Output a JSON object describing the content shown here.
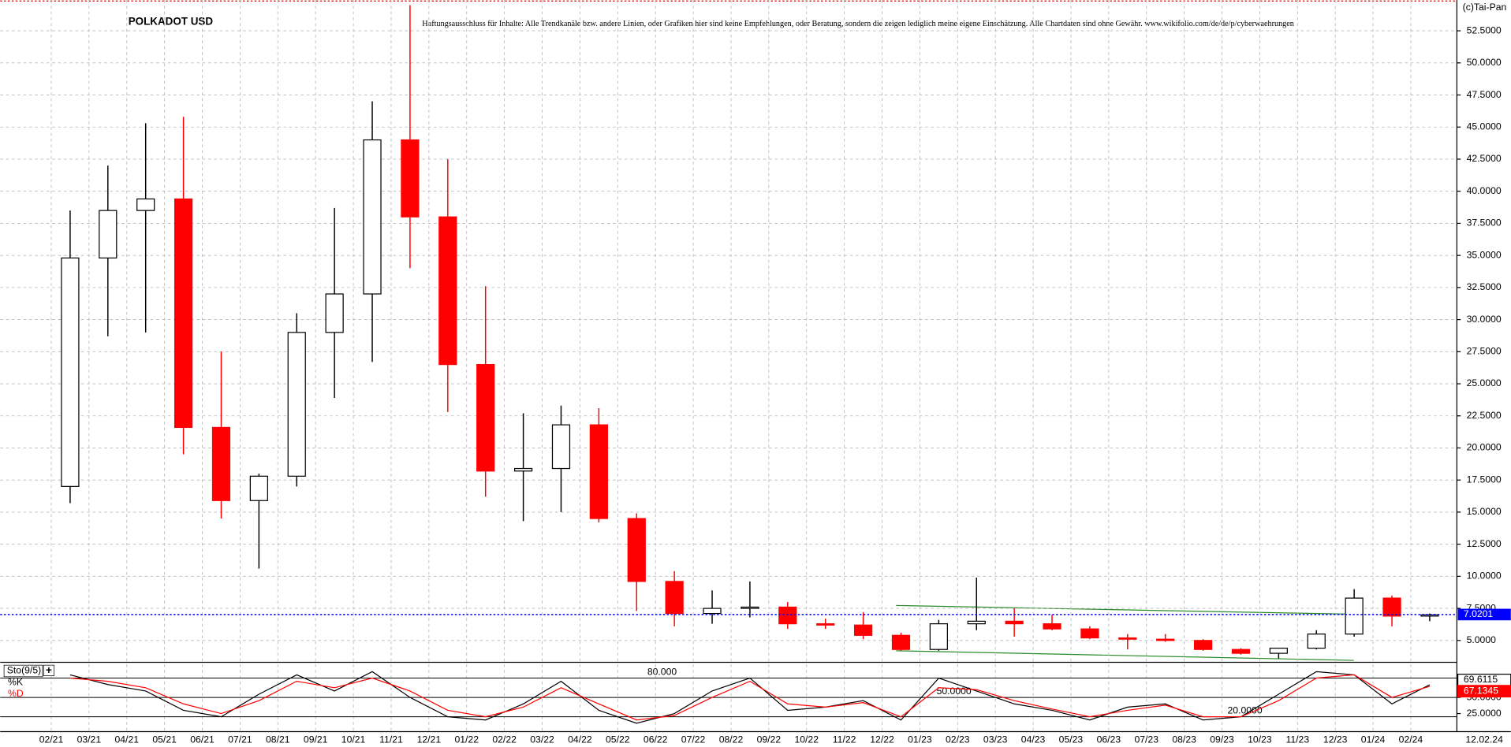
{
  "chart_data": [
    {
      "type": "candlestick",
      "title": "POLKADOT USD",
      "subtitle": "Haftungsausschluss für Inhalte: Alle Trendkanäle bzw. andere Linien, oder Grafiken hier sind keine Empfehlungen, oder Beratung, sondern die zeigen lediglich meine eigene Einschätzung. Alle Chartdaten sind ohne Gewähr.  www.wikifolio.com/de/de/p/cyberwaehrungen",
      "source": "(c)Tai-Pan",
      "date": "12.02.24",
      "categories": [
        "02/21",
        "03/21",
        "04/21",
        "05/21",
        "06/21",
        "07/21",
        "08/21",
        "09/21",
        "10/21",
        "11/21",
        "12/21",
        "01/22",
        "02/22",
        "03/22",
        "04/22",
        "05/22",
        "06/22",
        "07/22",
        "08/22",
        "09/22",
        "10/22",
        "11/22",
        "12/22",
        "01/23",
        "02/23",
        "03/23",
        "04/23",
        "05/23",
        "06/23",
        "07/23",
        "08/23",
        "09/23",
        "10/23",
        "11/23",
        "12/23",
        "01/24",
        "02/24"
      ],
      "open": [
        17,
        34.8,
        38.5,
        39.4,
        21.6,
        15.9,
        17.8,
        29,
        32,
        44,
        38,
        26.5,
        18.2,
        18.4,
        21.8,
        14.5,
        9.6,
        7.1,
        7.5,
        7.6,
        6.3,
        6.2,
        5.4,
        4.3,
        6.3,
        6.5,
        6.3,
        5.9,
        5.2,
        5.1,
        5.0,
        4.3,
        4.0,
        4.4,
        5.5,
        8.3,
        6.9
      ],
      "high": [
        38.5,
        42,
        45.3,
        45.8,
        27.5,
        18,
        30.5,
        38.7,
        47,
        54.5,
        42.5,
        32.6,
        22.7,
        23.3,
        23.1,
        14.9,
        10.4,
        8.9,
        9.6,
        8.0,
        6.7,
        7.2,
        5.6,
        6.6,
        9.9,
        7.5,
        7.0,
        6.1,
        5.5,
        5.5,
        5.1,
        4.4,
        4.4,
        5.8,
        9.0,
        8.5,
        7.1
      ],
      "low": [
        15.7,
        28.7,
        29,
        19.5,
        14.5,
        10.6,
        17,
        23.9,
        26.7,
        34,
        22.8,
        16.2,
        14.3,
        15,
        14.2,
        7.3,
        6.1,
        6.3,
        6.8,
        5.9,
        5.9,
        5.1,
        4.2,
        4.2,
        5.8,
        5.3,
        5.8,
        5.1,
        4.3,
        4.9,
        4.2,
        3.9,
        3.6,
        4.3,
        5.3,
        6.1,
        6.5
      ],
      "close": [
        34.8,
        38.5,
        39.4,
        21.6,
        15.9,
        17.8,
        29,
        32,
        44,
        38,
        26.5,
        18.2,
        18.4,
        21.8,
        14.5,
        9.6,
        7.1,
        7.5,
        7.6,
        6.3,
        6.2,
        5.4,
        4.3,
        6.3,
        6.5,
        6.3,
        5.9,
        5.2,
        5.1,
        5.0,
        4.3,
        4.0,
        4.4,
        5.5,
        8.3,
        6.9,
        7.0
      ],
      "up_color": "#000000",
      "down_color": "#ff0000",
      "last_price": 7.0201,
      "last_price_color": "#0000ff",
      "ylim": [
        3.3,
        54.9
      ],
      "yticks": [
        {
          "value": 5,
          "label": "5.0000"
        },
        {
          "value": 7.5,
          "label": "7.5000"
        },
        {
          "value": 10,
          "label": "10.0000"
        },
        {
          "value": 12.5,
          "label": "12.5000"
        },
        {
          "value": 15,
          "label": "15.0000"
        },
        {
          "value": 17.5,
          "label": "17.5000"
        },
        {
          "value": 20,
          "label": "20.0000"
        },
        {
          "value": 22.5,
          "label": "22.5000"
        },
        {
          "value": 25,
          "label": "25.0000"
        },
        {
          "value": 27.5,
          "label": "27.5000"
        },
        {
          "value": 30,
          "label": "30.0000"
        },
        {
          "value": 32.5,
          "label": "32.5000"
        },
        {
          "value": 35,
          "label": "35.0000"
        },
        {
          "value": 37.5,
          "label": "37.5000"
        },
        {
          "value": 40,
          "label": "40.0000"
        },
        {
          "value": 42.5,
          "label": "42.5000"
        },
        {
          "value": 45,
          "label": "45.0000"
        },
        {
          "value": 47.5,
          "label": "47.5000"
        },
        {
          "value": 50,
          "label": "50.0000"
        },
        {
          "value": 52.5,
          "label": "52.5000"
        }
      ],
      "grid": true
    },
    {
      "type": "line",
      "title": "Sto(9/5)",
      "series": [
        {
          "name": "%K",
          "color": "#000000",
          "values": [
            85,
            70,
            60,
            30,
            20,
            55,
            85,
            60,
            90,
            50,
            20,
            15,
            40,
            75,
            30,
            10,
            25,
            60,
            80,
            30,
            35,
            45,
            15,
            80,
            60,
            40,
            30,
            15,
            35,
            40,
            15,
            20,
            55,
            90,
            85,
            40,
            69.6115
          ]
        },
        {
          "name": "%D",
          "color": "#ff0000",
          "values": [
            80,
            75,
            65,
            40,
            25,
            45,
            75,
            65,
            80,
            60,
            30,
            20,
            35,
            65,
            40,
            15,
            22,
            50,
            75,
            40,
            35,
            42,
            20,
            65,
            62,
            45,
            32,
            20,
            30,
            38,
            20,
            20,
            45,
            80,
            85,
            50,
            67.1345
          ]
        }
      ],
      "ylim": [
        0,
        100
      ],
      "yticks": [
        {
          "value": 25,
          "label": "25.0000"
        },
        {
          "value": 50,
          "label": "50.0000"
        }
      ],
      "levels": [
        {
          "value": 80,
          "label": "80.000"
        },
        {
          "value": 50,
          "label": "50.0000"
        },
        {
          "value": 20,
          "label": "20.0000"
        }
      ]
    }
  ]
}
